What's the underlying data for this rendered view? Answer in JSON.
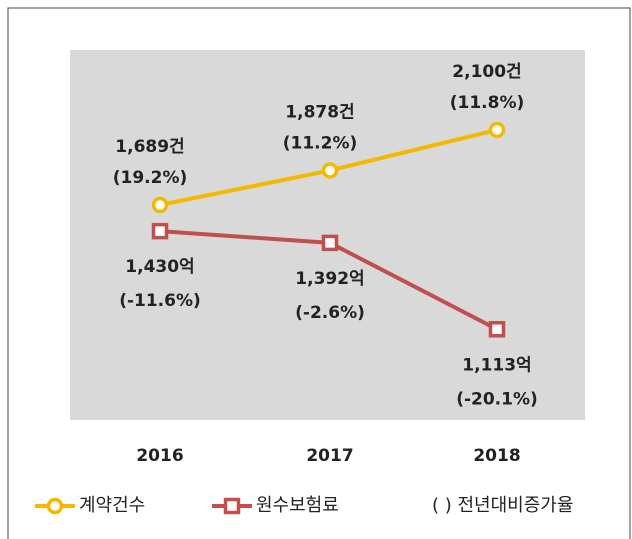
{
  "chart_data": {
    "type": "line",
    "categories": [
      "2016",
      "2017",
      "2018"
    ],
    "ylim": [
      511,
      2538
    ],
    "y2lim": [
      820,
      2015
    ],
    "series": [
      {
        "name": "계약건수",
        "color": "#f5b800",
        "marker": "circle",
        "values": [
          1689,
          1878,
          2100
        ],
        "value_labels": [
          "1,689건",
          "1,878건",
          "2,100건"
        ],
        "growth_labels": [
          "(19.2%)",
          "(11.2%)",
          "(11.8%)"
        ]
      },
      {
        "name": "원수보험료",
        "color": "#c0504d",
        "marker": "square",
        "axis": "y2",
        "values": [
          1430,
          1392,
          1113
        ],
        "value_labels": [
          "1,430억",
          "1,392억",
          "1,113억"
        ],
        "growth_labels": [
          "(-11.6%)",
          "(-2.6%)",
          "(-20.1%)"
        ]
      }
    ],
    "legend_note": "( ) 전년대비증가율"
  }
}
